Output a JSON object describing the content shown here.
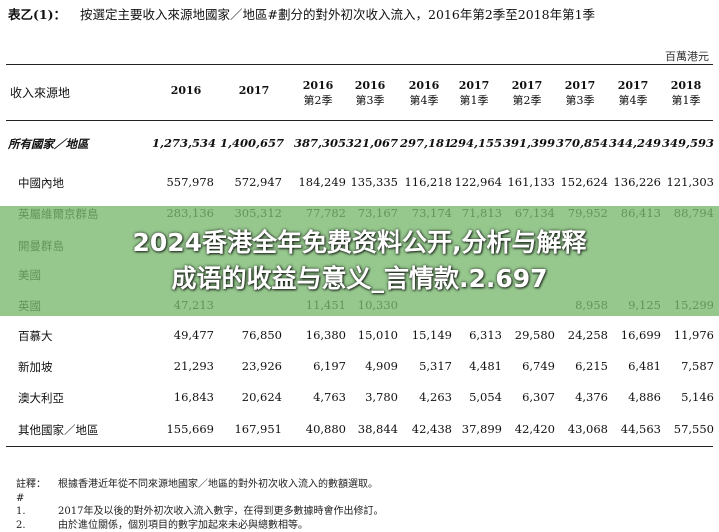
{
  "title": {
    "label": "表乙(1)：",
    "text": "按選定主要收入來源地國家／地區#劃分的對外初次收入流入，2016年第2季至2018年第1季"
  },
  "unit": "百萬港元",
  "header": {
    "row_label": "收入來源地",
    "columns": [
      {
        "year": "2016",
        "quarter": ""
      },
      {
        "year": "2017",
        "quarter": ""
      },
      {
        "year": "2016",
        "quarter": "第2季"
      },
      {
        "year": "2016",
        "quarter": "第3季"
      },
      {
        "year": "2016",
        "quarter": "第4季"
      },
      {
        "year": "2017",
        "quarter": "第1季"
      },
      {
        "year": "2017",
        "quarter": "第2季"
      },
      {
        "year": "2017",
        "quarter": "第3季"
      },
      {
        "year": "2017",
        "quarter": "第4季"
      },
      {
        "year": "2018",
        "quarter": "第1季"
      }
    ]
  },
  "rows": [
    {
      "name": "所有國家／地區",
      "total": true,
      "values": [
        "1,273,534",
        "1,400,657",
        "387,305",
        "321,067",
        "297,181",
        "294,155",
        "391,399",
        "370,854",
        "344,249",
        "349,593"
      ]
    },
    {
      "name": "中國內地",
      "values": [
        "557,978",
        "572,947",
        "184,249",
        "135,335",
        "116,218",
        "122,964",
        "161,133",
        "152,624",
        "136,226",
        "121,303"
      ]
    },
    {
      "name": "英屬維爾京群島",
      "values": [
        "283,136",
        "305,312",
        "77,782",
        "73,167",
        "73,174",
        "71,813",
        "67,134",
        "79,952",
        "86,413",
        "88,794"
      ]
    },
    {
      "name": "開曼群島",
      "values": [
        "",
        "",
        "",
        "",
        "",
        "",
        "",
        "",
        "",
        ""
      ]
    },
    {
      "name": "美國",
      "values": [
        "",
        "",
        "",
        "",
        "",
        "",
        "",
        "",
        "",
        ""
      ]
    },
    {
      "name": "英國",
      "values": [
        "47,213",
        "",
        "11,451",
        "10,330",
        "",
        "",
        "",
        "8,958",
        "9,125",
        "15,299"
      ]
    },
    {
      "name": "百慕大",
      "values": [
        "49,477",
        "76,850",
        "16,380",
        "15,010",
        "15,149",
        "6,313",
        "29,580",
        "24,258",
        "16,699",
        "11,976"
      ]
    },
    {
      "name": "新加坡",
      "values": [
        "21,293",
        "23,926",
        "6,197",
        "4,909",
        "5,317",
        "4,481",
        "6,749",
        "6,215",
        "6,481",
        "7,587"
      ]
    },
    {
      "name": "澳大利亞",
      "values": [
        "16,843",
        "20,624",
        "4,763",
        "3,780",
        "4,263",
        "5,054",
        "6,307",
        "4,376",
        "4,886",
        "5,146"
      ]
    },
    {
      "name": "其他國家／地區",
      "values": [
        "155,669",
        "167,951",
        "40,880",
        "38,844",
        "42,438",
        "37,899",
        "42,420",
        "43,068",
        "44,563",
        "57,550"
      ]
    }
  ],
  "notes": [
    {
      "prefix": "註釋：#",
      "text": "根據香港近年從不同來源地國家／地區的對外初次收入流入的數額選取。"
    },
    {
      "prefix": "1.",
      "text": "2017年及以後的對外初次收入流入數字，在得到更多數據時會作出修訂。"
    },
    {
      "prefix": "2.",
      "text": "由於進位關係，個別項目的數字加起來未必與總數相等。"
    }
  ],
  "banner": {
    "line1": "2024香港全年免费资料公开,分析与解释",
    "line2": "成语的收益与意义_言情款.2.697"
  }
}
